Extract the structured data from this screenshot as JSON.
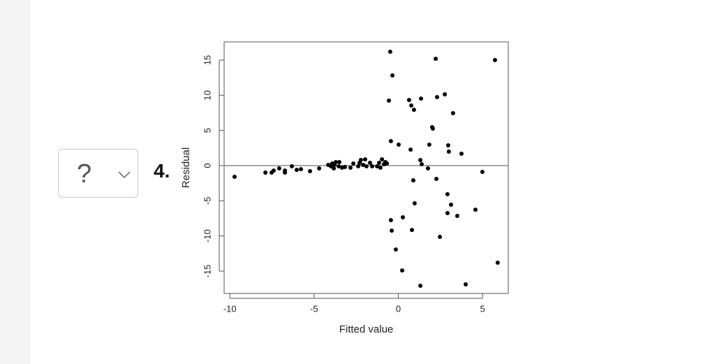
{
  "question": {
    "dropdown": "?",
    "number": "4."
  },
  "chart_data": {
    "type": "scatter",
    "x_label": "Fitted value",
    "y_label": "Residual",
    "x": [
      -9.72,
      -7.89,
      -7.52,
      -7.4,
      -7.07,
      -6.73,
      -6.73,
      -6.32,
      -6.03,
      -5.78,
      -5.24,
      -4.7,
      -4.16,
      -4.0,
      -3.92,
      -3.83,
      -3.79,
      -3.71,
      -3.54,
      -3.5,
      -3.34,
      -3.17,
      -2.84,
      -2.67,
      -2.38,
      -2.3,
      -2.22,
      -2.09,
      -1.97,
      -1.89,
      -1.68,
      -1.55,
      -1.26,
      -1.14,
      -1.06,
      -0.97,
      -0.85,
      -0.77,
      -0.68,
      -0.48,
      -0.35,
      -0.56,
      -0.44,
      0.02,
      0.73,
      -0.44,
      -0.39,
      -0.15,
      0.23,
      0.27,
      0.64,
      0.77,
      0.93,
      0.89,
      0.97,
      0.81,
      1.35,
      1.31,
      1.31,
      1.39,
      1.76,
      1.84,
      2.01,
      2.05,
      2.22,
      2.3,
      2.26,
      2.47,
      2.76,
      3.25,
      2.96,
      3.0,
      2.92,
      3.13,
      2.92,
      3.5,
      3.75,
      4.0,
      4.58,
      4.99,
      5.74,
      5.9
    ],
    "values": [
      -1.59,
      -0.99,
      -0.99,
      -0.7,
      -0.4,
      -0.7,
      -0.99,
      -0.1,
      -0.6,
      -0.5,
      -0.79,
      -0.4,
      0.1,
      -0.1,
      0.3,
      -0.4,
      0.1,
      0.5,
      -0.1,
      0.5,
      -0.3,
      -0.2,
      -0.3,
      0.3,
      -0.1,
      0.4,
      0.8,
      0.1,
      0.89,
      -0.1,
      0.4,
      -0.1,
      -0.1,
      0.4,
      -0.3,
      0.89,
      0.2,
      0.5,
      0.3,
      16.19,
      12.81,
      9.24,
      3.48,
      2.98,
      2.28,
      -7.75,
      -9.24,
      -11.92,
      -14.9,
      -7.35,
      9.33,
      8.54,
      7.94,
      -2.09,
      -5.36,
      -9.14,
      9.53,
      -17.08,
      0.79,
      0.2,
      -0.4,
      2.98,
      5.46,
      5.26,
      15.19,
      9.73,
      -1.89,
      -10.13,
      10.13,
      7.45,
      2.88,
      1.99,
      -4.07,
      -5.56,
      -6.75,
      -7.15,
      1.69,
      -16.88,
      -6.26,
      -0.89,
      15.0,
      -13.8
    ],
    "color": "#000000",
    "xlim": [
      -10.34,
      6.53
    ],
    "ylim": [
      -18.17,
      17.58
    ],
    "xticks": [
      -10,
      -5,
      0,
      5
    ],
    "yticks": [
      -15,
      -10,
      -5,
      0,
      5,
      10,
      15
    ],
    "reference_line": 0
  }
}
